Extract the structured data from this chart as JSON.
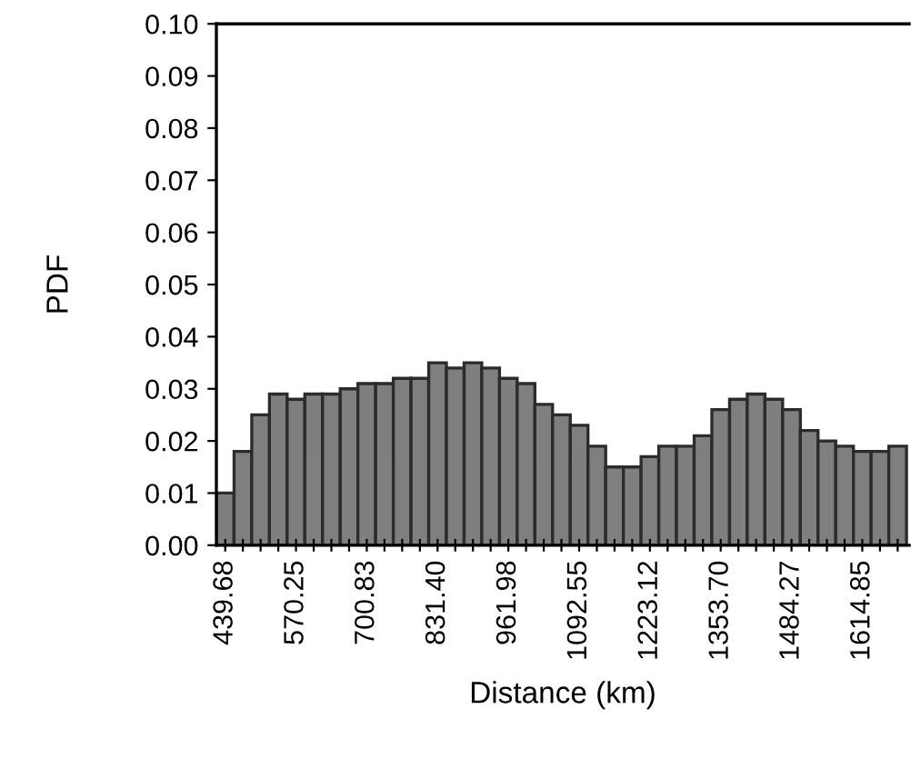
{
  "chart_data": {
    "type": "bar",
    "xlabel": "Distance (km)",
    "ylabel": "PDF",
    "categories": [
      "439.68",
      null,
      null,
      null,
      "570.25",
      null,
      null,
      null,
      "700.83",
      null,
      null,
      null,
      "831.40",
      null,
      null,
      null,
      "961.98",
      null,
      null,
      null,
      "1092.55",
      null,
      null,
      null,
      "1223.12",
      null,
      null,
      null,
      "1353.70",
      null,
      null,
      null,
      "1484.27",
      null,
      null,
      null,
      "1614.85",
      null,
      null
    ],
    "values": [
      0.01,
      0.018,
      0.025,
      0.029,
      0.028,
      0.029,
      0.029,
      0.03,
      0.031,
      0.031,
      0.032,
      0.032,
      0.035,
      0.034,
      0.035,
      0.034,
      0.032,
      0.031,
      0.027,
      0.025,
      0.023,
      0.019,
      0.015,
      0.015,
      0.017,
      0.019,
      0.019,
      0.021,
      0.026,
      0.028,
      0.029,
      0.028,
      0.026,
      0.022,
      0.02,
      0.019,
      0.018,
      0.018,
      0.019
    ],
    "color": "#7f7f7f",
    "ylim": [
      0,
      0.1
    ],
    "yticks": [
      {
        "value": 0,
        "label": "0.00"
      },
      {
        "value": 0.01,
        "label": "0.01"
      },
      {
        "value": 0.02,
        "label": "0.02"
      },
      {
        "value": 0.03,
        "label": "0.03"
      },
      {
        "value": 0.04,
        "label": "0.04"
      },
      {
        "value": 0.05,
        "label": "0.05"
      },
      {
        "value": 0.06,
        "label": "0.06"
      },
      {
        "value": 0.07,
        "label": "0.07"
      },
      {
        "value": 0.08,
        "label": "0.08"
      },
      {
        "value": 0.09,
        "label": "0.09"
      },
      {
        "value": 0.1,
        "label": "0.10"
      }
    ],
    "grid": false,
    "legend": false
  }
}
